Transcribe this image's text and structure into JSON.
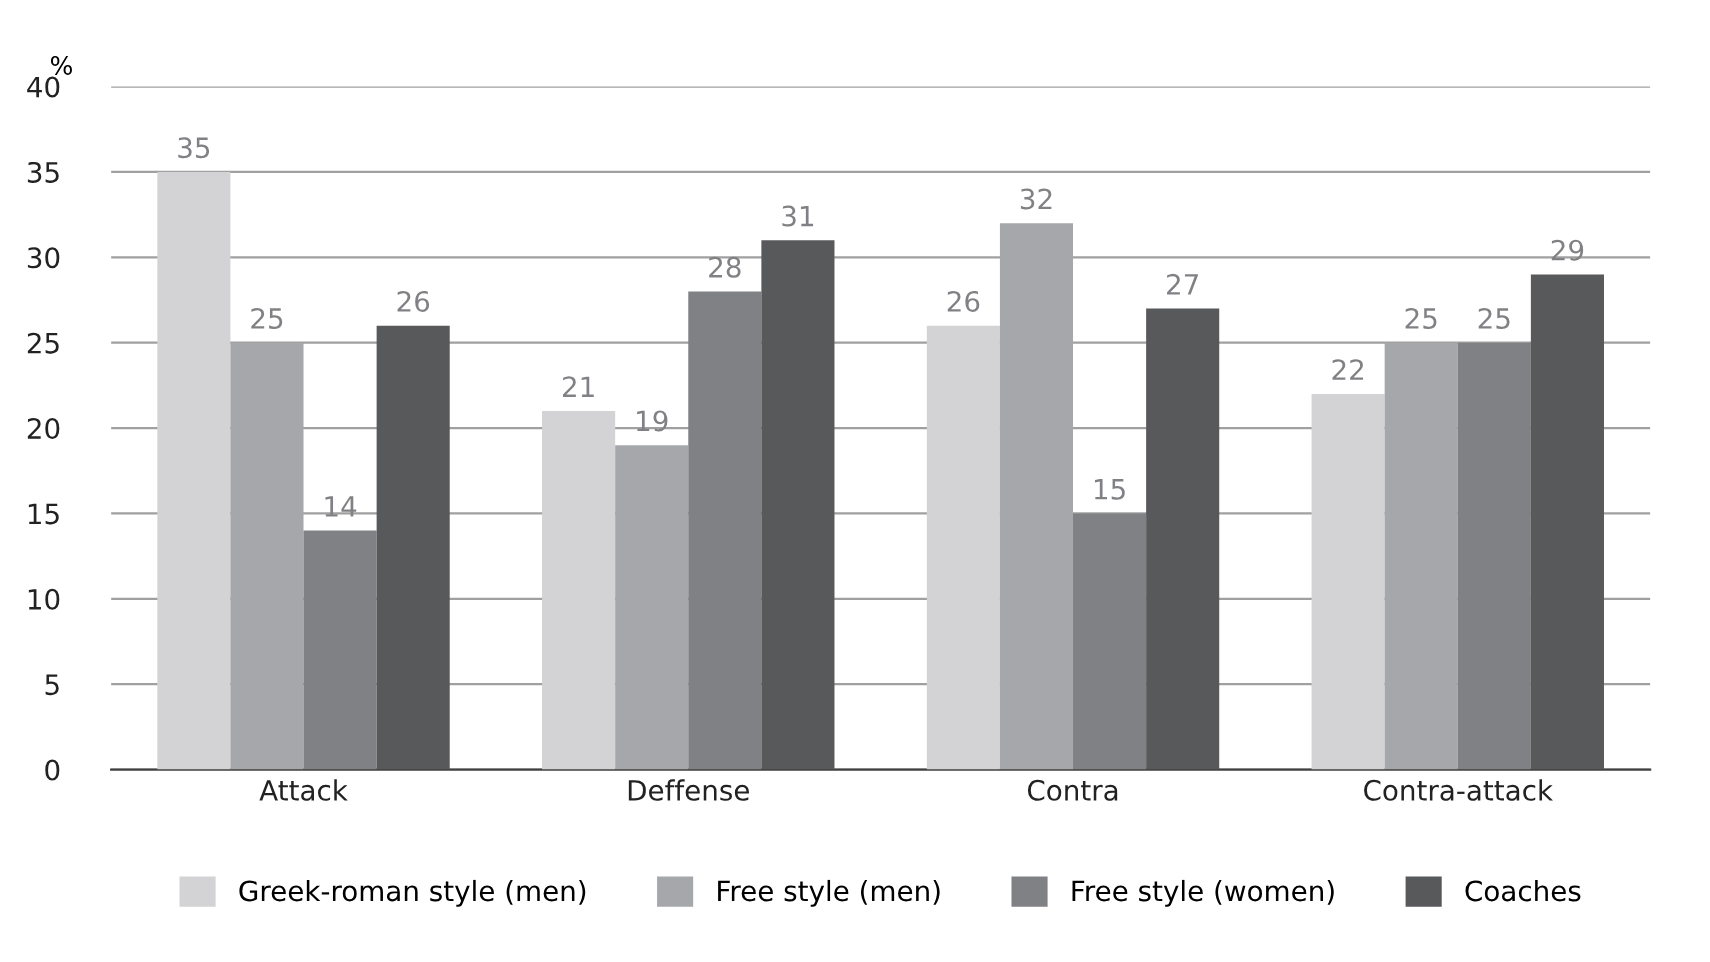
{
  "chart_data": {
    "type": "bar",
    "ylabel": "%",
    "categories": [
      "Attack",
      "Deffense",
      "Contra",
      "Contra-attack"
    ],
    "series": [
      {
        "name": "Greek-roman style (men)",
        "color": "#d3d3d5",
        "values": [
          35,
          21,
          26,
          22
        ]
      },
      {
        "name": "Free style (men)",
        "color": "#a6a7aa",
        "values": [
          25,
          19,
          32,
          25
        ]
      },
      {
        "name": "Free style (women)",
        "color": "#808184",
        "values": [
          14,
          28,
          15,
          25
        ]
      },
      {
        "name": "Coaches",
        "color": "#58595b",
        "values": [
          26,
          31,
          27,
          29
        ]
      }
    ],
    "ylim": [
      0,
      40
    ],
    "yticks": [
      0,
      5,
      10,
      15,
      20,
      25,
      30,
      35,
      40
    ],
    "grid": "y",
    "legend": "bottom",
    "data_labels": true
  }
}
